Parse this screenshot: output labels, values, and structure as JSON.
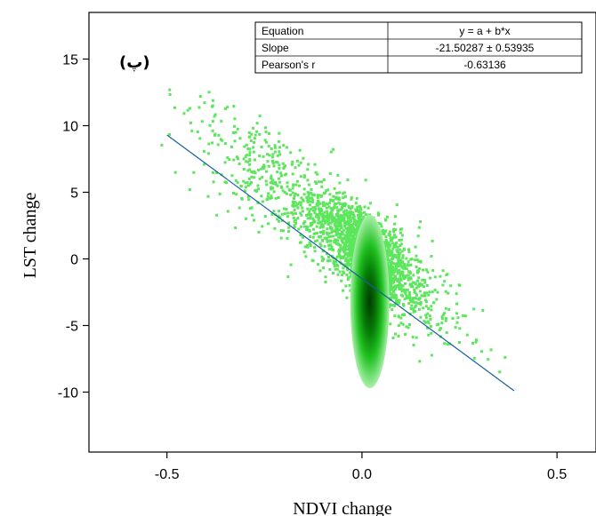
{
  "chart_data": {
    "type": "scatter",
    "panel_label": "(پ)",
    "xlabel": "NDVI change",
    "ylabel": "LST change",
    "xlim": [
      -0.7,
      0.6
    ],
    "ylim": [
      -14.5,
      18.5
    ],
    "xticks": [
      -0.5,
      0.0,
      0.5
    ],
    "xtick_labels": [
      "-0.5",
      "0.0",
      "0.5"
    ],
    "yticks": [
      -10,
      -5,
      0,
      5,
      10,
      15
    ],
    "ytick_labels": [
      "-10",
      "-5",
      "0",
      "5",
      "10",
      "15"
    ],
    "grid": false,
    "point_color": "#5de65d",
    "line_color": "#1a5fa0",
    "fit_line": {
      "x": [
        -0.5,
        0.39
      ],
      "y": [
        9.3,
        -9.9
      ]
    },
    "density_core": {
      "x": 0.02,
      "y": -3.2,
      "colors": [
        "#a8f0a8",
        "#1fc01f",
        "#067a06",
        "#023a02"
      ]
    },
    "stats_table": {
      "rows": [
        {
          "label": "Equation",
          "value": "y = a + b*x"
        },
        {
          "label": "Slope",
          "value": "-21.50287 ± 0.53935"
        },
        {
          "label": "Pearson's r",
          "value": "-0.63136"
        }
      ]
    }
  }
}
